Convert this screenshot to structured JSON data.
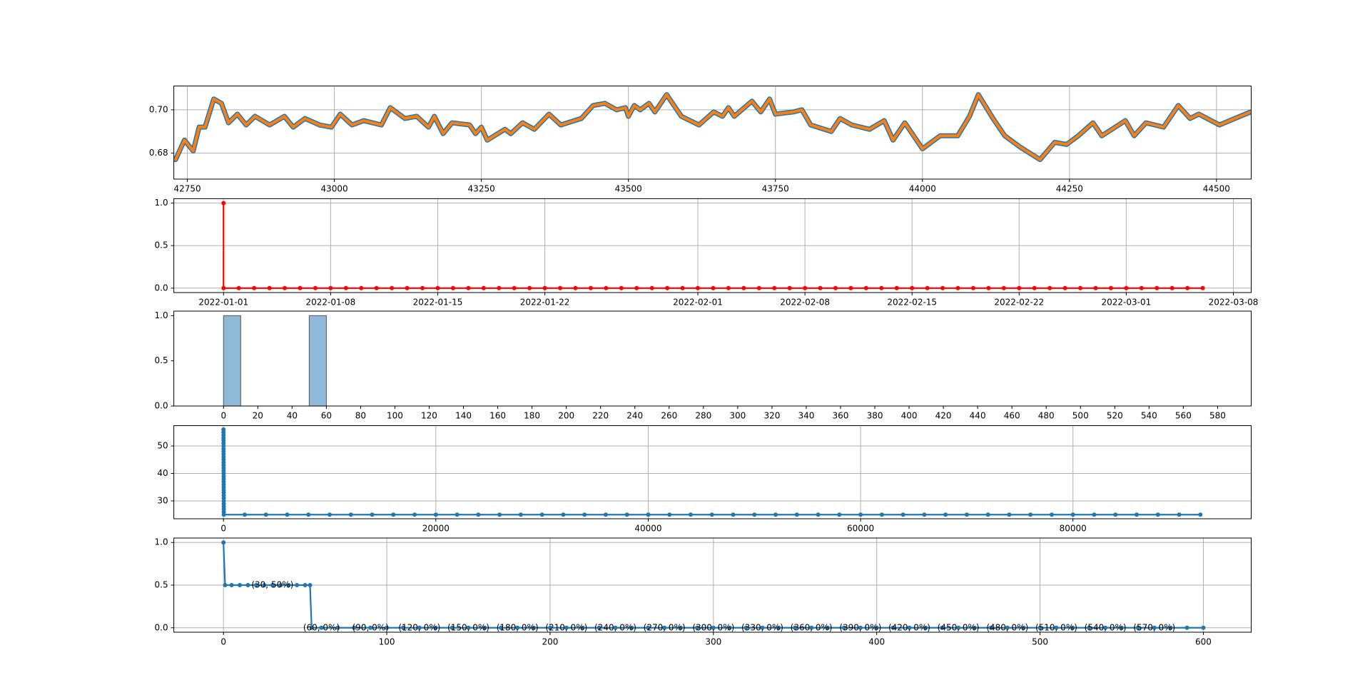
{
  "chart_data": [
    {
      "type": "line",
      "grid": true,
      "x": [
        42730,
        42745,
        42760,
        42770,
        42780,
        42795,
        42808,
        42820,
        42835,
        42850,
        42865,
        42890,
        42915,
        42930,
        42950,
        42975,
        42995,
        43010,
        43030,
        43050,
        43080,
        43095,
        43120,
        43140,
        43160,
        43170,
        43185,
        43200,
        43230,
        43240,
        43250,
        43260,
        43290,
        43300,
        43320,
        43340,
        43365,
        43385,
        43420,
        43440,
        43460,
        43480,
        43495,
        43500,
        43510,
        43520,
        43535,
        43545,
        43565,
        43590,
        43620,
        43645,
        43660,
        43670,
        43680,
        43710,
        43725,
        43740,
        43750,
        43780,
        43795,
        43810,
        43845,
        43860,
        43880,
        43910,
        43935,
        43950,
        43970,
        44000,
        44030,
        44060,
        44080,
        44095,
        44120,
        44140,
        44165,
        44200,
        44225,
        44245,
        44265,
        44290,
        44305,
        44345,
        44360,
        44380,
        44410,
        44435,
        44455,
        44470,
        44505,
        44540,
        44558
      ],
      "series": [
        {
          "color": "#1f77b4",
          "values": [
            0.677,
            0.686,
            0.681,
            0.692,
            0.692,
            0.705,
            0.703,
            0.694,
            0.698,
            0.693,
            0.697,
            0.693,
            0.697,
            0.692,
            0.696,
            0.693,
            0.692,
            0.698,
            0.693,
            0.695,
            0.693,
            0.701,
            0.696,
            0.697,
            0.692,
            0.697,
            0.689,
            0.694,
            0.693,
            0.689,
            0.692,
            0.686,
            0.691,
            0.689,
            0.694,
            0.691,
            0.698,
            0.693,
            0.696,
            0.702,
            0.703,
            0.7,
            0.701,
            0.697,
            0.702,
            0.7,
            0.703,
            0.699,
            0.707,
            0.697,
            0.693,
            0.699,
            0.697,
            0.701,
            0.697,
            0.704,
            0.699,
            0.705,
            0.698,
            0.699,
            0.7,
            0.693,
            0.69,
            0.696,
            0.693,
            0.691,
            0.695,
            0.686,
            0.694,
            0.682,
            0.688,
            0.688,
            0.697,
            0.707,
            0.696,
            0.688,
            0.683,
            0.677,
            0.685,
            0.684,
            0.688,
            0.694,
            0.688,
            0.695,
            0.688,
            0.694,
            0.692,
            0.702,
            0.696,
            0.698,
            0.693,
            0.697,
            0.699
          ]
        },
        {
          "color": "#ff7f0e",
          "values": [
            0.677,
            0.686,
            0.681,
            0.692,
            0.692,
            0.705,
            0.703,
            0.694,
            0.698,
            0.693,
            0.697,
            0.693,
            0.697,
            0.692,
            0.696,
            0.693,
            0.692,
            0.698,
            0.693,
            0.695,
            0.693,
            0.701,
            0.696,
            0.697,
            0.692,
            0.697,
            0.689,
            0.694,
            0.693,
            0.689,
            0.692,
            0.686,
            0.691,
            0.689,
            0.694,
            0.691,
            0.698,
            0.693,
            0.696,
            0.702,
            0.703,
            0.7,
            0.701,
            0.697,
            0.702,
            0.7,
            0.703,
            0.699,
            0.707,
            0.697,
            0.693,
            0.699,
            0.697,
            0.701,
            0.697,
            0.704,
            0.699,
            0.705,
            0.698,
            0.699,
            0.7,
            0.693,
            0.69,
            0.696,
            0.693,
            0.691,
            0.695,
            0.686,
            0.694,
            0.682,
            0.688,
            0.688,
            0.697,
            0.707,
            0.696,
            0.688,
            0.683,
            0.677,
            0.685,
            0.684,
            0.688,
            0.694,
            0.688,
            0.695,
            0.688,
            0.694,
            0.692,
            0.702,
            0.696,
            0.698,
            0.693,
            0.697,
            0.699
          ]
        }
      ],
      "xlim": [
        42727,
        44559
      ],
      "xticks": [
        42750,
        43000,
        43250,
        43500,
        43750,
        44000,
        44250,
        44500
      ],
      "ylim": [
        0.668,
        0.711
      ],
      "yticks": [
        0.68,
        {
          "value": 0.7,
          "label": "0.70"
        }
      ]
    },
    {
      "type": "line",
      "grid": true,
      "marker": true,
      "x": [
        "2022-01-01",
        "2022-01-01",
        "2022-01-02",
        "2022-01-03",
        "2022-01-04",
        "2022-01-05",
        "2022-01-06",
        "2022-01-07",
        "2022-01-08",
        "2022-01-09",
        "2022-01-10",
        "2022-01-11",
        "2022-01-12",
        "2022-01-13",
        "2022-01-14",
        "2022-01-15",
        "2022-01-16",
        "2022-01-17",
        "2022-01-18",
        "2022-01-19",
        "2022-01-20",
        "2022-01-21",
        "2022-01-22",
        "2022-01-23",
        "2022-01-24",
        "2022-01-25",
        "2022-01-26",
        "2022-01-27",
        "2022-01-28",
        "2022-01-29",
        "2022-01-30",
        "2022-01-31",
        "2022-02-01",
        "2022-02-02",
        "2022-02-03",
        "2022-02-04",
        "2022-02-05",
        "2022-02-06",
        "2022-02-07",
        "2022-02-08",
        "2022-02-09",
        "2022-02-10",
        "2022-02-11",
        "2022-02-12",
        "2022-02-13",
        "2022-02-14",
        "2022-02-15",
        "2022-02-16",
        "2022-02-17",
        "2022-02-18",
        "2022-02-19",
        "2022-02-20",
        "2022-02-21",
        "2022-02-22",
        "2022-02-23",
        "2022-02-24",
        "2022-02-25",
        "2022-02-26",
        "2022-02-27",
        "2022-02-28",
        "2022-03-01",
        "2022-03-02",
        "2022-03-03",
        "2022-03-04",
        "2022-03-05",
        "2022-03-06"
      ],
      "series": [
        {
          "color": "#ff0000",
          "values": [
            1,
            0,
            0,
            0,
            0,
            0,
            0,
            0,
            0,
            0,
            0,
            0,
            0,
            0,
            0,
            0,
            0,
            0,
            0,
            0,
            0,
            0,
            0,
            0,
            0,
            0,
            0,
            0,
            0,
            0,
            0,
            0,
            0,
            0,
            0,
            0,
            0,
            0,
            0,
            0,
            0,
            0,
            0,
            0,
            0,
            0,
            0,
            0,
            0,
            0,
            0,
            0,
            0,
            0,
            0,
            0,
            0,
            0,
            0,
            0,
            0,
            0,
            0,
            0,
            0,
            0
          ]
        }
      ],
      "xlim": [
        "2021-12-28T18:00",
        "2022-03-09T04:00"
      ],
      "xticks": [
        "2022-01-01",
        "2022-01-08",
        "2022-01-15",
        "2022-01-22",
        "2022-02-01",
        "2022-02-08",
        "2022-02-15",
        "2022-02-22",
        "2022-03-01",
        "2022-03-08"
      ],
      "ylim": [
        -0.052,
        1.052
      ],
      "yticks": [
        {
          "value": 0,
          "label": "0.0"
        },
        0.5,
        {
          "value": 1,
          "label": "1.0"
        }
      ]
    },
    {
      "type": "histogram",
      "grid": false,
      "color": "#8fb9d9",
      "bins": [
        0,
        10,
        20,
        30,
        40,
        50,
        60,
        70,
        80,
        90,
        100,
        110,
        120,
        130,
        140,
        150,
        160,
        170,
        180,
        190,
        200,
        210,
        220,
        230,
        240,
        250,
        260,
        270,
        280,
        290,
        300,
        310,
        320,
        330,
        340,
        350,
        360,
        370,
        380,
        390,
        400,
        410,
        420,
        430,
        440,
        450,
        460,
        470,
        480,
        490,
        500,
        510,
        520,
        530,
        540,
        550,
        560,
        570
      ],
      "counts": [
        1,
        0,
        0,
        0,
        0,
        1,
        0,
        0,
        0,
        0,
        0,
        0,
        0,
        0,
        0,
        0,
        0,
        0,
        0,
        0,
        0,
        0,
        0,
        0,
        0,
        0,
        0,
        0,
        0,
        0,
        0,
        0,
        0,
        0,
        0,
        0,
        0,
        0,
        0,
        0,
        0,
        0,
        0,
        0,
        0,
        0,
        0,
        0,
        0,
        0,
        0,
        0,
        0,
        0,
        0,
        0,
        0
      ],
      "xlim": [
        -29,
        599.6
      ],
      "xticks": [
        0,
        20,
        40,
        60,
        80,
        100,
        120,
        140,
        160,
        180,
        200,
        220,
        240,
        260,
        280,
        300,
        320,
        340,
        360,
        380,
        400,
        420,
        440,
        460,
        480,
        500,
        520,
        540,
        560,
        580
      ],
      "ylim": [
        0,
        1.05
      ],
      "yticks": [
        {
          "value": 0,
          "label": "0.0"
        },
        0.5,
        {
          "value": 1,
          "label": "1.0"
        }
      ]
    },
    {
      "type": "line",
      "grid": true,
      "marker": true,
      "x": [
        0,
        1,
        2,
        3,
        4,
        5,
        6,
        7,
        8,
        9,
        10,
        11,
        12,
        13,
        14,
        15,
        16,
        17,
        18,
        19,
        20,
        21,
        22,
        23,
        24,
        25,
        26,
        27,
        28,
        29,
        30,
        31,
        2000,
        4000,
        6000,
        8000,
        10000,
        12000,
        14000,
        16000,
        18000,
        20000,
        22000,
        24000,
        26000,
        28000,
        30000,
        32000,
        34000,
        36000,
        38000,
        40000,
        42000,
        44000,
        46000,
        48000,
        50000,
        52000,
        54000,
        56000,
        58000,
        60000,
        62000,
        64000,
        66000,
        68000,
        70000,
        72000,
        74000,
        76000,
        78000,
        80000,
        82000,
        84000,
        86000,
        88000,
        90000,
        92000
      ],
      "series": [
        {
          "color": "#1f77b4",
          "values": [
            56,
            55,
            54,
            53,
            52,
            51,
            50,
            49,
            48,
            47,
            46,
            45,
            44,
            43,
            42,
            41,
            40,
            39,
            38,
            37,
            36,
            35,
            34,
            33,
            32,
            31,
            30,
            29,
            28,
            27,
            26,
            25,
            25,
            25,
            25,
            25,
            25,
            25,
            25,
            25,
            25,
            25,
            25,
            25,
            25,
            25,
            25,
            25,
            25,
            25,
            25,
            25,
            25,
            25,
            25,
            25,
            25,
            25,
            25,
            25,
            25,
            25,
            25,
            25,
            25,
            25,
            25,
            25,
            25,
            25,
            25,
            25,
            25,
            25,
            25,
            25,
            25,
            25
          ]
        }
      ],
      "xlim": [
        -4676,
        96785
      ],
      "xticks": [
        0,
        20000,
        40000,
        60000,
        80000
      ],
      "ylim": [
        23.5,
        57.4
      ],
      "yticks": [
        30,
        40,
        50
      ]
    },
    {
      "type": "line",
      "grid": true,
      "marker": true,
      "x": [
        0,
        1,
        5,
        10,
        15,
        20,
        25,
        30,
        35,
        40,
        45,
        50,
        53,
        54,
        60,
        70,
        80,
        90,
        100,
        110,
        120,
        130,
        140,
        150,
        160,
        170,
        180,
        190,
        200,
        210,
        220,
        230,
        240,
        250,
        260,
        270,
        280,
        290,
        300,
        310,
        320,
        330,
        340,
        350,
        360,
        370,
        380,
        390,
        400,
        410,
        420,
        430,
        440,
        450,
        460,
        470,
        480,
        490,
        500,
        510,
        520,
        530,
        540,
        550,
        560,
        570,
        580,
        590,
        600
      ],
      "series": [
        {
          "color": "#1f77b4",
          "values": [
            1,
            0.5,
            0.5,
            0.5,
            0.5,
            0.5,
            0.5,
            0.5,
            0.5,
            0.5,
            0.5,
            0.5,
            0.5,
            0,
            0,
            0,
            0,
            0,
            0,
            0,
            0,
            0,
            0,
            0,
            0,
            0,
            0,
            0,
            0,
            0,
            0,
            0,
            0,
            0,
            0,
            0,
            0,
            0,
            0,
            0,
            0,
            0,
            0,
            0,
            0,
            0,
            0,
            0,
            0,
            0,
            0,
            0,
            0,
            0,
            0,
            0,
            0,
            0,
            0,
            0,
            0,
            0,
            0,
            0,
            0,
            0,
            0,
            0,
            0
          ]
        }
      ],
      "annotations": [
        {
          "text": "(30, 50%)",
          "x": 30,
          "y": 0.5
        },
        {
          "text": "(60, 0%)",
          "x": 60,
          "y": 0
        },
        {
          "text": "(90, 0%)",
          "x": 90,
          "y": 0
        },
        {
          "text": "(120, 0%)",
          "x": 120,
          "y": 0
        },
        {
          "text": "(150, 0%)",
          "x": 150,
          "y": 0
        },
        {
          "text": "(180, 0%)",
          "x": 180,
          "y": 0
        },
        {
          "text": "(210, 0%)",
          "x": 210,
          "y": 0
        },
        {
          "text": "(240, 0%)",
          "x": 240,
          "y": 0
        },
        {
          "text": "(270, 0%)",
          "x": 270,
          "y": 0
        },
        {
          "text": "(300, 0%)",
          "x": 300,
          "y": 0
        },
        {
          "text": "(330, 0%)",
          "x": 330,
          "y": 0
        },
        {
          "text": "(360, 0%)",
          "x": 360,
          "y": 0
        },
        {
          "text": "(390, 0%)",
          "x": 390,
          "y": 0
        },
        {
          "text": "(420, 0%)",
          "x": 420,
          "y": 0
        },
        {
          "text": "(450, 0%)",
          "x": 450,
          "y": 0
        },
        {
          "text": "(480, 0%)",
          "x": 480,
          "y": 0
        },
        {
          "text": "(510, 0%)",
          "x": 510,
          "y": 0
        },
        {
          "text": "(540, 0%)",
          "x": 540,
          "y": 0
        },
        {
          "text": "(570, 0%)",
          "x": 570,
          "y": 0
        }
      ],
      "xlim": [
        -30.4,
        629.3
      ],
      "xticks": [
        0,
        100,
        200,
        300,
        400,
        500,
        600
      ],
      "ylim": [
        -0.052,
        1.052
      ],
      "yticks": [
        {
          "value": 0,
          "label": "0.0"
        },
        0.5,
        {
          "value": 1,
          "label": "1.0"
        }
      ]
    }
  ]
}
